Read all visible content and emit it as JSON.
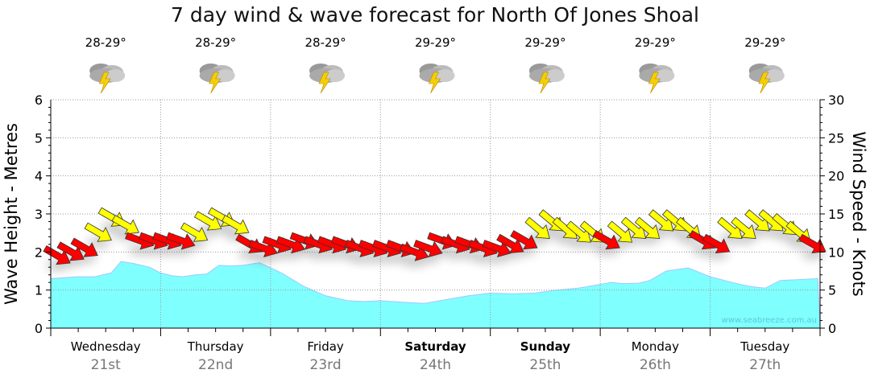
{
  "chart_data": {
    "type": "area",
    "title": "7 day wind & wave forecast for North Of Jones Shoal",
    "ylabel_left": "Wave Height - Metres",
    "ylabel_right": "Wind Speed - Knots",
    "ylim_left": [
      0,
      6
    ],
    "ylim_right": [
      0,
      30
    ],
    "yticks_left": [
      "0",
      "1",
      "2",
      "3",
      "4",
      "5",
      "6"
    ],
    "yticks_right": [
      "0",
      "5",
      "10",
      "15",
      "20",
      "25",
      "30"
    ],
    "grid": true,
    "watermark": "www.seabreeze.com.au",
    "days": [
      {
        "name": "Wednesday",
        "date": "21st",
        "temp": "28-29°",
        "bold": false,
        "weather": "thunderstorm"
      },
      {
        "name": "Thursday",
        "date": "22nd",
        "temp": "28-29°",
        "bold": false,
        "weather": "thunderstorm"
      },
      {
        "name": "Friday",
        "date": "23rd",
        "temp": "28-29°",
        "bold": false,
        "weather": "thunderstorm"
      },
      {
        "name": "Saturday",
        "date": "24th",
        "temp": "29-29°",
        "bold": true,
        "weather": "thunderstorm"
      },
      {
        "name": "Sunday",
        "date": "25th",
        "temp": "29-29°",
        "bold": true,
        "weather": "thunderstorm"
      },
      {
        "name": "Monday",
        "date": "26th",
        "temp": "29-29°",
        "bold": false,
        "weather": "thunderstorm"
      },
      {
        "name": "Tuesday",
        "date": "27th",
        "temp": "29-29°",
        "bold": false,
        "weather": "thunderstorm"
      }
    ],
    "wave_series": {
      "name": "Wave Height (m)",
      "x_days": [
        0,
        0.24,
        0.4,
        0.55,
        0.64,
        0.75,
        0.9,
        1.0,
        1.1,
        1.2,
        1.31,
        1.42,
        1.53,
        1.64,
        1.75,
        1.9,
        2.1,
        2.3,
        2.5,
        2.7,
        2.85,
        3.0,
        3.2,
        3.4,
        3.6,
        3.8,
        4.0,
        4.2,
        4.4,
        4.6,
        4.8,
        5.0,
        5.1,
        5.2,
        5.35,
        5.45,
        5.6,
        5.8,
        6.0,
        6.2,
        6.32,
        6.4,
        6.5,
        6.64,
        6.98
      ],
      "values": [
        1.3,
        1.35,
        1.35,
        1.45,
        1.75,
        1.7,
        1.6,
        1.45,
        1.38,
        1.35,
        1.4,
        1.42,
        1.65,
        1.63,
        1.65,
        1.72,
        1.45,
        1.1,
        0.85,
        0.72,
        0.7,
        0.72,
        0.68,
        0.65,
        0.75,
        0.85,
        0.92,
        0.9,
        0.92,
        1.0,
        1.05,
        1.15,
        1.2,
        1.17,
        1.18,
        1.25,
        1.5,
        1.58,
        1.35,
        1.2,
        1.12,
        1.08,
        1.05,
        1.25,
        1.3
      ]
    },
    "wind_series": {
      "name": "Wind Speed (knots)",
      "step_hours": 3,
      "threshold_yellow": 12.5,
      "values": [
        9.5,
        10,
        10.5,
        12.5,
        14.5,
        13.5,
        11.5,
        11.5,
        11.5,
        11.5,
        12.5,
        14,
        14.5,
        13.5,
        11,
        10.5,
        11,
        11,
        11.5,
        11,
        11,
        11,
        10.5,
        10.5,
        10.5,
        10.5,
        10,
        10.5,
        11.5,
        11,
        11,
        10.5,
        10.5,
        11,
        11.5,
        13,
        14,
        13,
        12.5,
        12.5,
        11.5,
        12.5,
        13,
        13,
        14,
        14,
        13,
        11.5,
        11,
        13,
        13,
        14,
        14,
        13.5,
        12.5,
        11
      ],
      "direction_deg": [
        300,
        300,
        300,
        300,
        300,
        300,
        290,
        290,
        290,
        290,
        300,
        300,
        300,
        300,
        300,
        290,
        290,
        290,
        290,
        290,
        290,
        290,
        290,
        290,
        290,
        290,
        290,
        290,
        290,
        290,
        290,
        290,
        290,
        300,
        300,
        310,
        310,
        310,
        310,
        310,
        300,
        310,
        310,
        310,
        310,
        310,
        310,
        300,
        300,
        310,
        310,
        310,
        310,
        310,
        310,
        300
      ]
    },
    "colors": {
      "wave": "#80ffff",
      "wave_line": "#a0c8ff",
      "wind_low": "#ff0000",
      "wind_high": "#ffff00"
    }
  }
}
